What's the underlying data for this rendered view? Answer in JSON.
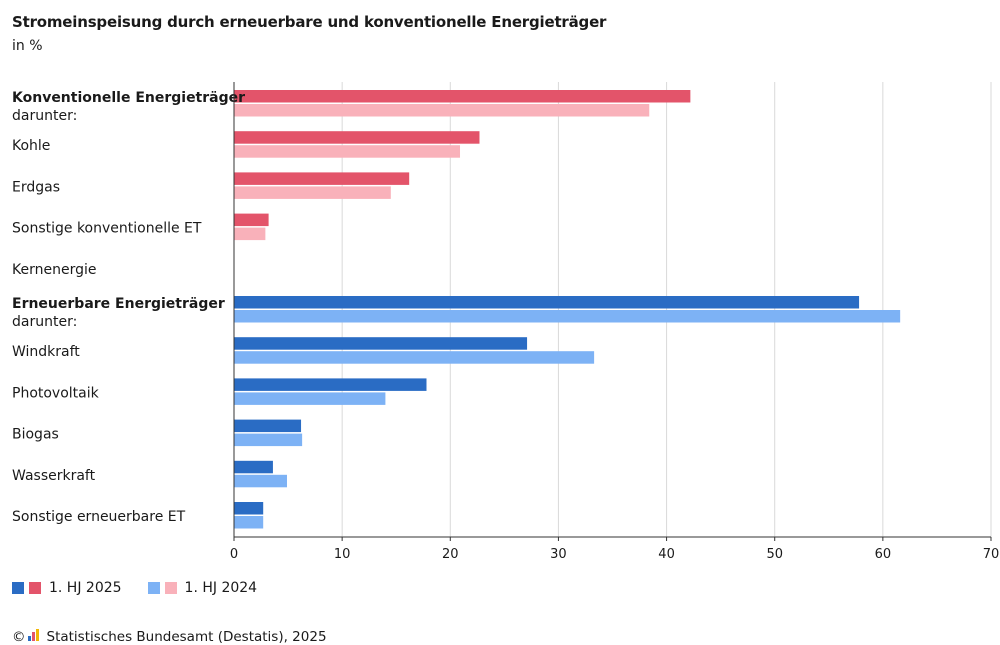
{
  "title": "Stromeinspeisung durch erneuerbare und konventionelle Energieträger",
  "subtitle": "in %",
  "legend": {
    "s2025": "1. HJ 2025",
    "s2024": "1. HJ 2024"
  },
  "source": {
    "copyright": "©",
    "text": "Statistisches Bundesamt (Destatis), 2025"
  },
  "colors": {
    "conv_2025": "#e3546a",
    "conv_2024": "#f9b1ba",
    "ren_2025": "#2a6cc4",
    "ren_2024": "#7db2f5",
    "grid": "#d9d9d9",
    "axis": "#333333"
  },
  "chart_data": {
    "type": "bar",
    "orientation": "horizontal",
    "xlim": [
      0,
      70
    ],
    "xticks": [
      0,
      10,
      20,
      30,
      40,
      50,
      60,
      70
    ],
    "grid": true,
    "legend_position": "bottom-left",
    "series_names": [
      "1. HJ 2025",
      "1. HJ 2024"
    ],
    "categories": [
      {
        "label": "Konventionelle Energieträger",
        "sublabel": "darunter:",
        "bold": true,
        "group": "conv",
        "values": [
          42.2,
          38.4
        ]
      },
      {
        "label": "Kohle",
        "group": "conv",
        "values": [
          22.7,
          20.9
        ]
      },
      {
        "label": "Erdgas",
        "group": "conv",
        "values": [
          16.2,
          14.5
        ]
      },
      {
        "label": "Sonstige konventionelle ET",
        "group": "conv",
        "values": [
          3.2,
          2.9
        ]
      },
      {
        "label": "Kernenergie",
        "group": "conv",
        "values": [
          0,
          0
        ]
      },
      {
        "label": "Erneuerbare Energieträger",
        "sublabel": "darunter:",
        "bold": true,
        "group": "ren",
        "values": [
          57.8,
          61.6
        ]
      },
      {
        "label": "Windkraft",
        "group": "ren",
        "values": [
          27.1,
          33.3
        ]
      },
      {
        "label": "Photovoltaik",
        "group": "ren",
        "values": [
          17.8,
          14.0
        ]
      },
      {
        "label": "Biogas",
        "group": "ren",
        "values": [
          6.2,
          6.3
        ]
      },
      {
        "label": "Wasserkraft",
        "group": "ren",
        "values": [
          3.6,
          4.9
        ]
      },
      {
        "label": "Sonstige erneuerbare ET",
        "group": "ren",
        "values": [
          2.7,
          2.7
        ]
      }
    ]
  }
}
